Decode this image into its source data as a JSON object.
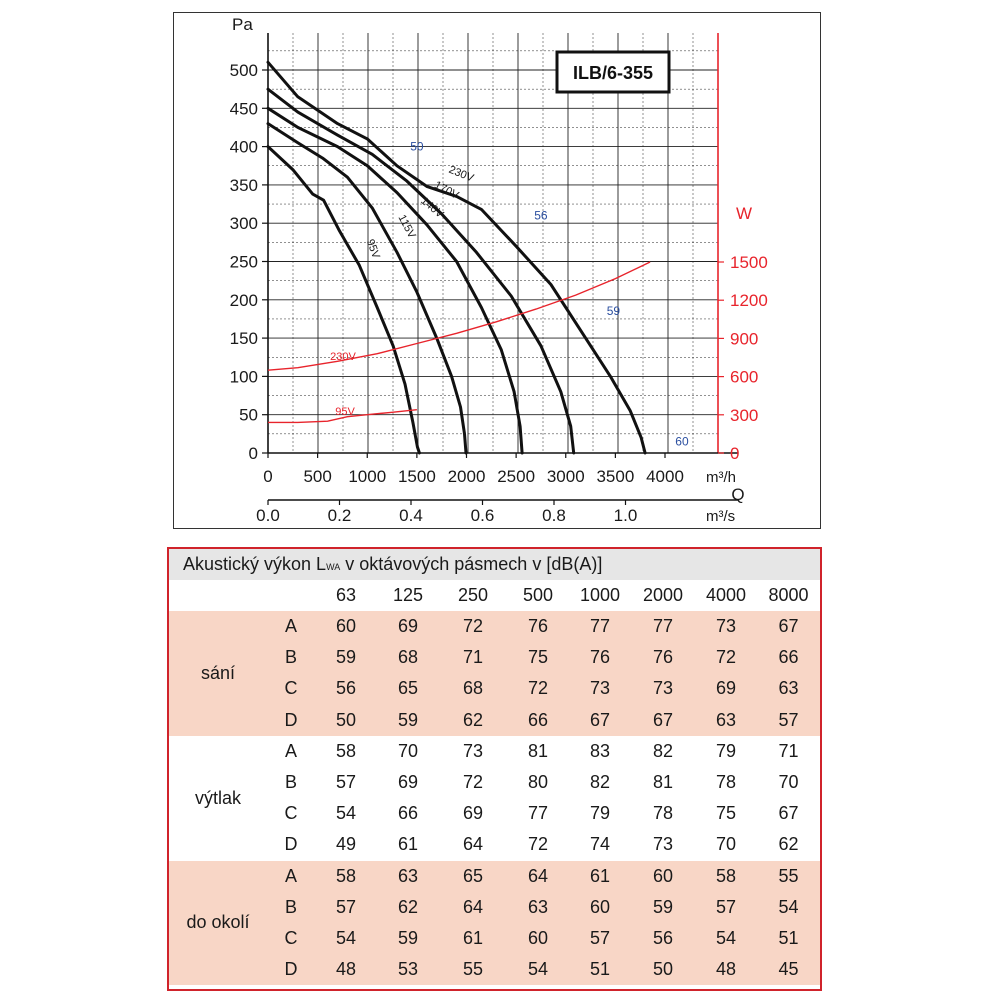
{
  "chart_data": {
    "type": "line",
    "model_label": "ILB/6-355",
    "y_left_unit": "Pa",
    "y_right_unit": "W",
    "x_unit_flow": "m³/h",
    "x_symbol": "Q",
    "x_unit_flow_s": "m³/s",
    "xlim": [
      0,
      4000
    ],
    "ylim": [
      0,
      500
    ],
    "y2lim": [
      0,
      1500
    ],
    "x_ticks": [
      0,
      500,
      1000,
      1500,
      2000,
      2500,
      3000,
      3500,
      4000
    ],
    "x_ticks_s": [
      "0.0",
      "0.2",
      "0.4",
      "0.6",
      "0.8",
      "1.0"
    ],
    "y_ticks": [
      0,
      50,
      100,
      150,
      200,
      250,
      300,
      350,
      400,
      450,
      500
    ],
    "y2_ticks": [
      0,
      300,
      600,
      900,
      1200,
      1500
    ],
    "grid": true,
    "pressure_series": [
      {
        "name": "95V",
        "points": [
          [
            0,
            400
          ],
          [
            250,
            370
          ],
          [
            450,
            338
          ],
          [
            560,
            330
          ],
          [
            720,
            290
          ],
          [
            920,
            245
          ],
          [
            1100,
            190
          ],
          [
            1260,
            140
          ],
          [
            1380,
            90
          ],
          [
            1460,
            40
          ],
          [
            1505,
            8
          ],
          [
            1525,
            0
          ]
        ]
      },
      {
        "name": "115V",
        "points": [
          [
            0,
            430
          ],
          [
            300,
            405
          ],
          [
            550,
            385
          ],
          [
            800,
            360
          ],
          [
            1050,
            320
          ],
          [
            1300,
            262
          ],
          [
            1500,
            210
          ],
          [
            1700,
            150
          ],
          [
            1850,
            100
          ],
          [
            1940,
            60
          ],
          [
            1980,
            25
          ],
          [
            1995,
            0
          ]
        ]
      },
      {
        "name": "140V",
        "points": [
          [
            0,
            450
          ],
          [
            300,
            425
          ],
          [
            700,
            400
          ],
          [
            1000,
            375
          ],
          [
            1300,
            340
          ],
          [
            1600,
            298
          ],
          [
            1900,
            250
          ],
          [
            2150,
            190
          ],
          [
            2350,
            135
          ],
          [
            2480,
            80
          ],
          [
            2540,
            35
          ],
          [
            2560,
            0
          ]
        ]
      },
      {
        "name": "170V",
        "points": [
          [
            0,
            475
          ],
          [
            300,
            445
          ],
          [
            700,
            415
          ],
          [
            1050,
            390
          ],
          [
            1400,
            355
          ],
          [
            1750,
            312
          ],
          [
            2100,
            262
          ],
          [
            2450,
            205
          ],
          [
            2750,
            140
          ],
          [
            2950,
            80
          ],
          [
            3050,
            35
          ],
          [
            3080,
            0
          ]
        ]
      },
      {
        "name": "230V",
        "points": [
          [
            0,
            510
          ],
          [
            300,
            465
          ],
          [
            700,
            430
          ],
          [
            1000,
            410
          ],
          [
            1300,
            375
          ],
          [
            1600,
            348
          ],
          [
            1900,
            335
          ],
          [
            2150,
            318
          ],
          [
            2500,
            270
          ],
          [
            2850,
            220
          ],
          [
            3200,
            150
          ],
          [
            3450,
            100
          ],
          [
            3650,
            55
          ],
          [
            3760,
            20
          ],
          [
            3800,
            0
          ]
        ]
      }
    ],
    "power_series": [
      {
        "name": "230V",
        "points": [
          [
            0,
            650
          ],
          [
            300,
            670
          ],
          [
            700,
            720
          ],
          [
            1100,
            780
          ],
          [
            1500,
            860
          ],
          [
            1900,
            940
          ],
          [
            2300,
            1030
          ],
          [
            2700,
            1130
          ],
          [
            3100,
            1240
          ],
          [
            3500,
            1370
          ],
          [
            3850,
            1500
          ]
        ]
      },
      {
        "name": "95V",
        "points": [
          [
            0,
            240
          ],
          [
            300,
            240
          ],
          [
            600,
            250
          ],
          [
            800,
            285
          ],
          [
            1050,
            305
          ],
          [
            1250,
            320
          ],
          [
            1500,
            340
          ]
        ]
      }
    ],
    "curve_labels": [
      {
        "text": "50",
        "x": 1500,
        "y": 395
      },
      {
        "text": "56",
        "x": 2750,
        "y": 305
      },
      {
        "text": "59",
        "x": 3480,
        "y": 180
      },
      {
        "text": "60",
        "x": 4050,
        "y": 10
      }
    ]
  },
  "acoustic_table": {
    "title_prefix": "Akustický výkon L",
    "title_sub": "WA",
    "title_suffix": " v oktávových pásmech v [dB(A)]",
    "bands": [
      "63",
      "125",
      "250",
      "500",
      "1000",
      "2000",
      "4000",
      "8000"
    ],
    "groups": [
      {
        "name": "sání",
        "rows": [
          {
            "label": "A",
            "values": [
              "60",
              "69",
              "72",
              "76",
              "77",
              "77",
              "73",
              "67"
            ]
          },
          {
            "label": "B",
            "values": [
              "59",
              "68",
              "71",
              "75",
              "76",
              "76",
              "72",
              "66"
            ]
          },
          {
            "label": "C",
            "values": [
              "56",
              "65",
              "68",
              "72",
              "73",
              "73",
              "69",
              "63"
            ]
          },
          {
            "label": "D",
            "values": [
              "50",
              "59",
              "62",
              "66",
              "67",
              "67",
              "63",
              "57"
            ]
          }
        ]
      },
      {
        "name": "výtlak",
        "rows": [
          {
            "label": "A",
            "values": [
              "58",
              "70",
              "73",
              "81",
              "83",
              "82",
              "79",
              "71"
            ]
          },
          {
            "label": "B",
            "values": [
              "57",
              "69",
              "72",
              "80",
              "82",
              "81",
              "78",
              "70"
            ]
          },
          {
            "label": "C",
            "values": [
              "54",
              "66",
              "69",
              "77",
              "79",
              "78",
              "75",
              "67"
            ]
          },
          {
            "label": "D",
            "values": [
              "49",
              "61",
              "64",
              "72",
              "74",
              "73",
              "70",
              "62"
            ]
          }
        ]
      },
      {
        "name": "do okolí",
        "rows": [
          {
            "label": "A",
            "values": [
              "58",
              "63",
              "65",
              "64",
              "61",
              "60",
              "58",
              "55"
            ]
          },
          {
            "label": "B",
            "values": [
              "57",
              "62",
              "64",
              "63",
              "60",
              "59",
              "57",
              "54"
            ]
          },
          {
            "label": "C",
            "values": [
              "54",
              "59",
              "61",
              "60",
              "57",
              "56",
              "54",
              "51"
            ]
          },
          {
            "label": "D",
            "values": [
              "48",
              "53",
              "55",
              "54",
              "51",
              "50",
              "48",
              "45"
            ]
          }
        ]
      }
    ]
  },
  "colors": {
    "curve": "#111111",
    "power": "#e8242c",
    "label_blue": "#2b4fa0",
    "band_pink": "#f8d6c6"
  }
}
